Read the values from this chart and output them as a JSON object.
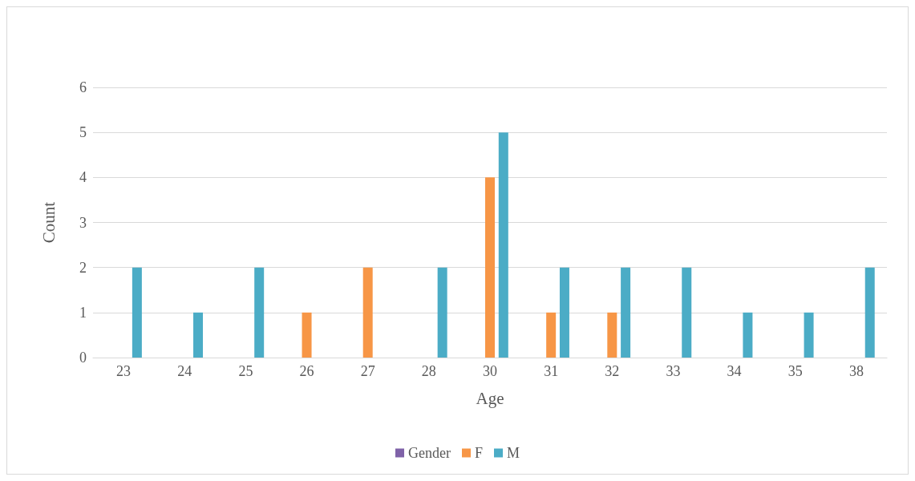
{
  "chart_data": {
    "type": "bar",
    "xlabel": "Age",
    "ylabel": "Count",
    "categories": [
      "23",
      "24",
      "25",
      "26",
      "27",
      "28",
      "30",
      "31",
      "32",
      "33",
      "34",
      "35",
      "38"
    ],
    "series": [
      {
        "name": "Gender",
        "color": "#7f62a8",
        "values": [
          null,
          null,
          null,
          null,
          null,
          null,
          null,
          null,
          null,
          null,
          null,
          null,
          null
        ]
      },
      {
        "name": "F",
        "color": "#f79646",
        "values": [
          null,
          null,
          null,
          1,
          2,
          null,
          4,
          1,
          1,
          null,
          null,
          null,
          null
        ]
      },
      {
        "name": "M",
        "color": "#4bacc6",
        "values": [
          2,
          1,
          2,
          null,
          null,
          2,
          5,
          2,
          2,
          2,
          1,
          1,
          2
        ]
      }
    ],
    "ylim": [
      0,
      6
    ],
    "yticks": [
      0,
      1,
      2,
      3,
      4,
      5,
      6
    ],
    "grid": "y",
    "legend": "bottom"
  }
}
